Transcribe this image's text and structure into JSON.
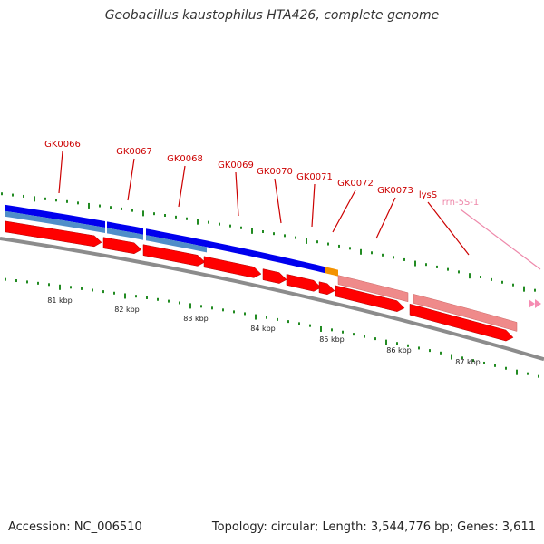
{
  "title": "Geobacillus kaustophilus HTA426, complete genome",
  "accession_text": "Accession: NC_006510",
  "summary_text": "Topology: circular; Length: 3,544,776 bp; Genes: 3,611",
  "colors": {
    "cds": "#ff0000",
    "cds_pseudo": "#ef8a8a",
    "rrna": "#f58cb2",
    "cog_blue": "#0000ee",
    "cog_steel": "#4f8ec9",
    "cog_orange": "#f39200",
    "backbone": "#8c8c8c",
    "tick": "#228b22",
    "gene_label": "#cc0000",
    "rrna_label": "#ee88aa"
  },
  "gene_labels": [
    {
      "name": "GK0066",
      "kind": "cds"
    },
    {
      "name": "GK0067",
      "kind": "cds"
    },
    {
      "name": "GK0068",
      "kind": "cds"
    },
    {
      "name": "GK0069",
      "kind": "cds"
    },
    {
      "name": "GK0070",
      "kind": "cds"
    },
    {
      "name": "GK0071",
      "kind": "cds"
    },
    {
      "name": "GK0072",
      "kind": "cds"
    },
    {
      "name": "GK0073",
      "kind": "cds"
    },
    {
      "name": "lysS",
      "kind": "cds"
    },
    {
      "name": "rrn-5S-1",
      "kind": "rrna"
    }
  ],
  "kbp_ticks": [
    "81 kbp",
    "82 kbp",
    "83 kbp",
    "84 kbp",
    "85 kbp",
    "86 kbp",
    "87 kbp"
  ]
}
